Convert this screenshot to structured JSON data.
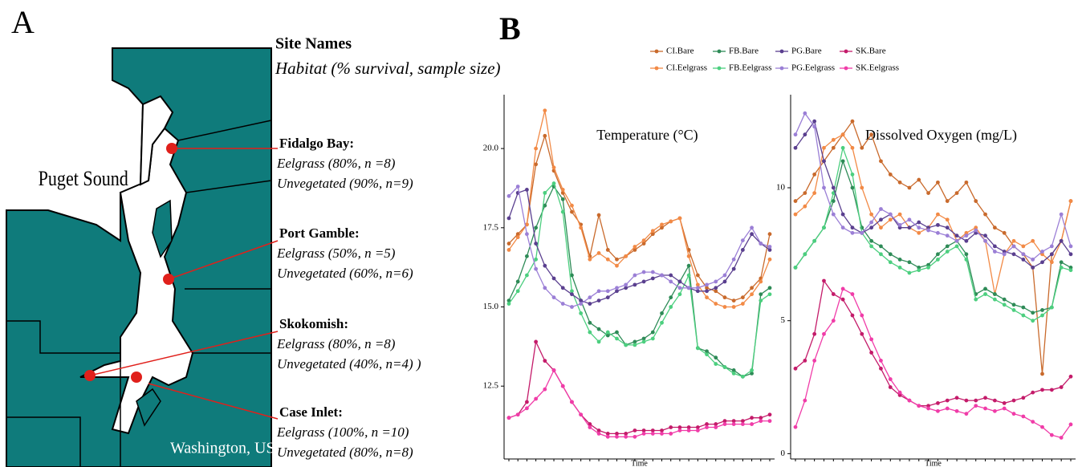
{
  "panel_labels": [
    "A",
    "B"
  ],
  "map": {
    "region_label": "Puget Sound",
    "state_label": "Washington, USA",
    "header": {
      "title": "Site Names",
      "subtitle": "Habitat (% survival, sample size)"
    },
    "sites": [
      {
        "name": "Fidalgo Bay:",
        "lines": [
          "Eelgrass (80%, n =8)",
          "Unvegetated (90%, n=9)"
        ]
      },
      {
        "name": "Port Gamble:",
        "lines": [
          "Eelgrass (50%, n =5)",
          "Unvegetated (60%, n=6)"
        ]
      },
      {
        "name": "Skokomish:",
        "lines": [
          "Eelgrass (80%, n =8)",
          "Unvegetated (40%, n=4) )"
        ]
      },
      {
        "name": "Case Inlet:",
        "lines": [
          "Eelgrass (100%, n =10)",
          "Unvegetated (80%, n=8)"
        ]
      }
    ]
  },
  "chart_data": [
    {
      "type": "line",
      "title": "Temperature (°C)",
      "xlabel": "Time",
      "categories": [
        null,
        null,
        null,
        null,
        null,
        null,
        null,
        null,
        null,
        null,
        null,
        null,
        null,
        null,
        null,
        null,
        null,
        null,
        null,
        null,
        null,
        null,
        null,
        null,
        null,
        null,
        null,
        null,
        null,
        null
      ],
      "ylim": [
        10.2,
        21.7
      ],
      "yticks": [
        12.5,
        {
          "value": 15,
          "label": "15.0"
        },
        17.5,
        {
          "value": 20,
          "label": "20.0"
        }
      ],
      "series": [
        {
          "name": "CI.Bare",
          "color": "#c96a2c",
          "values": [
            17.0,
            17.3,
            17.6,
            19.5,
            20.4,
            19.3,
            18.6,
            18.0,
            17.6,
            16.6,
            17.9,
            16.8,
            16.5,
            16.6,
            16.8,
            17.0,
            17.3,
            17.5,
            17.7,
            17.8,
            16.8,
            16.0,
            15.6,
            15.5,
            15.3,
            15.2,
            15.3,
            15.6,
            15.9,
            17.3
          ]
        },
        {
          "name": "CI.Eelgrass",
          "color": "#f28a46",
          "values": [
            16.8,
            17.2,
            17.6,
            20.0,
            21.2,
            19.4,
            18.7,
            18.2,
            17.5,
            16.5,
            16.7,
            16.5,
            16.3,
            16.6,
            16.9,
            17.1,
            17.4,
            17.6,
            17.7,
            17.8,
            16.6,
            15.7,
            15.3,
            15.1,
            15.0,
            15.0,
            15.1,
            15.4,
            15.8,
            16.5
          ]
        },
        {
          "name": "FB.Bare",
          "color": "#2e8b57",
          "values": [
            15.2,
            15.8,
            16.6,
            17.5,
            18.2,
            18.8,
            18.4,
            16.0,
            15.2,
            14.5,
            14.3,
            14.1,
            14.2,
            13.8,
            13.9,
            14.0,
            14.2,
            14.8,
            15.3,
            15.8,
            16.3,
            13.7,
            13.6,
            13.4,
            13.1,
            13.0,
            12.8,
            12.9,
            15.4,
            15.6
          ]
        },
        {
          "name": "FB.Eelgrass",
          "color": "#4ccf7f",
          "values": [
            15.1,
            15.5,
            16.0,
            16.5,
            18.6,
            18.9,
            18.0,
            15.5,
            14.8,
            14.2,
            13.9,
            14.2,
            14.0,
            13.8,
            13.8,
            13.9,
            14.0,
            14.5,
            15.0,
            15.4,
            16.0,
            13.7,
            13.5,
            13.2,
            13.1,
            12.9,
            12.8,
            13.0,
            15.2,
            15.4
          ]
        },
        {
          "name": "PG.Bare",
          "color": "#5a3f8f",
          "values": [
            17.8,
            18.6,
            18.7,
            17.0,
            16.3,
            15.9,
            15.6,
            15.4,
            15.2,
            15.1,
            15.2,
            15.3,
            15.5,
            15.6,
            15.7,
            15.8,
            15.9,
            16.0,
            16.0,
            15.8,
            15.6,
            15.5,
            15.5,
            15.6,
            15.8,
            16.2,
            16.8,
            17.3,
            17.0,
            16.8
          ]
        },
        {
          "name": "PG.Eelgrass",
          "color": "#9b7fd6",
          "values": [
            18.5,
            18.8,
            17.3,
            16.2,
            15.6,
            15.3,
            15.1,
            15.0,
            15.1,
            15.3,
            15.5,
            15.5,
            15.6,
            15.7,
            16.0,
            16.1,
            16.1,
            16.0,
            15.8,
            15.6,
            15.6,
            15.6,
            15.7,
            15.8,
            16.0,
            16.5,
            17.1,
            17.5,
            17.0,
            16.9
          ]
        },
        {
          "name": "SK.Bare",
          "color": "#c41b6a",
          "values": [
            11.5,
            11.6,
            12.0,
            13.9,
            13.3,
            13.0,
            12.5,
            12.0,
            11.6,
            11.3,
            11.1,
            11.0,
            11.0,
            11.0,
            11.1,
            11.1,
            11.1,
            11.1,
            11.2,
            11.2,
            11.2,
            11.2,
            11.3,
            11.3,
            11.4,
            11.4,
            11.4,
            11.5,
            11.5,
            11.6
          ]
        },
        {
          "name": "SK.Eelgrass",
          "color": "#f03ca8",
          "values": [
            11.5,
            11.6,
            11.8,
            12.1,
            12.4,
            13.0,
            12.5,
            12.0,
            11.6,
            11.2,
            11.0,
            10.9,
            10.9,
            10.9,
            10.9,
            11.0,
            11.0,
            11.0,
            11.0,
            11.1,
            11.1,
            11.1,
            11.2,
            11.2,
            11.3,
            11.3,
            11.3,
            11.3,
            11.4,
            11.4
          ]
        }
      ]
    },
    {
      "type": "line",
      "title": "Dissolved Oxygen (mg/L)",
      "xlabel": "Time",
      "categories": [
        null,
        null,
        null,
        null,
        null,
        null,
        null,
        null,
        null,
        null,
        null,
        null,
        null,
        null,
        null,
        null,
        null,
        null,
        null,
        null,
        null,
        null,
        null,
        null,
        null,
        null,
        null,
        null,
        null,
        null
      ],
      "ylim": [
        -0.2,
        13.5
      ],
      "yticks": [
        0,
        5,
        10
      ],
      "series": [
        {
          "name": "CI.Bare",
          "color": "#c96a2c",
          "values": [
            9.5,
            9.8,
            10.5,
            11.0,
            11.5,
            12.0,
            12.5,
            11.5,
            12.0,
            11.0,
            10.5,
            10.2,
            10.0,
            10.3,
            9.8,
            10.2,
            9.5,
            9.8,
            10.2,
            9.5,
            9.0,
            8.5,
            8.3,
            7.8,
            7.5,
            7.0,
            3.0,
            7.5,
            8.0,
            9.5
          ]
        },
        {
          "name": "CI.Eelgrass",
          "color": "#f28a46",
          "values": [
            9.0,
            9.3,
            9.8,
            11.5,
            11.8,
            12.0,
            11.5,
            10.0,
            9.0,
            8.5,
            8.8,
            9.0,
            8.5,
            8.3,
            8.5,
            9.0,
            8.8,
            8.0,
            8.3,
            8.5,
            8.0,
            6.0,
            7.5,
            8.0,
            7.8,
            8.0,
            7.5,
            7.2,
            8.0,
            9.5
          ]
        },
        {
          "name": "FB.Bare",
          "color": "#2e8b57",
          "values": [
            7.0,
            7.5,
            8.0,
            8.5,
            9.5,
            11.0,
            10.0,
            8.5,
            8.0,
            7.8,
            7.5,
            7.3,
            7.2,
            7.0,
            7.1,
            7.5,
            7.8,
            8.0,
            7.5,
            6.0,
            6.2,
            6.0,
            5.8,
            5.6,
            5.5,
            5.3,
            5.4,
            5.5,
            7.2,
            7.0
          ]
        },
        {
          "name": "FB.Eelgrass",
          "color": "#4ccf7f",
          "values": [
            7.0,
            7.5,
            8.0,
            8.5,
            9.8,
            11.5,
            10.5,
            8.3,
            7.8,
            7.5,
            7.2,
            7.0,
            6.8,
            6.9,
            7.0,
            7.3,
            7.6,
            7.8,
            7.3,
            5.8,
            6.0,
            5.8,
            5.6,
            5.4,
            5.2,
            5.0,
            5.2,
            5.5,
            7.0,
            6.9
          ]
        },
        {
          "name": "PG.Bare",
          "color": "#5a3f8f",
          "values": [
            11.5,
            12.0,
            12.5,
            11.0,
            10.0,
            9.0,
            8.5,
            8.3,
            8.5,
            8.8,
            9.0,
            8.5,
            8.5,
            8.7,
            8.5,
            8.6,
            8.5,
            8.2,
            8.0,
            8.3,
            8.2,
            7.8,
            7.6,
            7.5,
            7.3,
            7.0,
            7.2,
            7.5,
            8.0,
            7.5
          ]
        },
        {
          "name": "PG.Eelgrass",
          "color": "#9b7fd6",
          "values": [
            12.0,
            12.8,
            12.3,
            10.0,
            9.0,
            8.5,
            8.3,
            8.3,
            8.7,
            9.2,
            9.0,
            8.6,
            8.8,
            8.5,
            8.4,
            8.3,
            8.2,
            8.0,
            8.2,
            8.4,
            8.0,
            7.6,
            7.5,
            7.8,
            7.5,
            7.3,
            7.6,
            7.8,
            9.0,
            7.8
          ]
        },
        {
          "name": "SK.Bare",
          "color": "#c41b6a",
          "values": [
            3.2,
            3.5,
            4.5,
            6.5,
            6.0,
            5.8,
            5.2,
            4.5,
            3.8,
            3.2,
            2.5,
            2.2,
            2.0,
            1.8,
            1.8,
            1.9,
            2.0,
            2.1,
            2.0,
            2.0,
            2.1,
            2.0,
            1.9,
            2.0,
            2.1,
            2.3,
            2.4,
            2.4,
            2.5,
            2.9
          ]
        },
        {
          "name": "SK.Eelgrass",
          "color": "#f03ca8",
          "values": [
            1.0,
            2.0,
            3.5,
            4.5,
            5.0,
            6.2,
            6.0,
            5.2,
            4.3,
            3.5,
            2.8,
            2.3,
            2.0,
            1.8,
            1.7,
            1.6,
            1.7,
            1.6,
            1.5,
            1.8,
            1.7,
            1.6,
            1.7,
            1.5,
            1.4,
            1.2,
            1.0,
            0.7,
            0.6,
            1.1
          ]
        }
      ]
    }
  ]
}
